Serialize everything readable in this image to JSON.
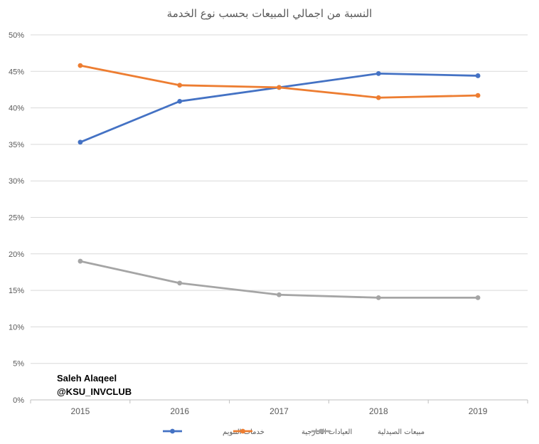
{
  "chart_data": {
    "type": "line",
    "title": "النسبة من اجمالي المبيعات بحسب نوع الخدمة",
    "categories": [
      "2015",
      "2016",
      "2017",
      "2018",
      "2019"
    ],
    "ylim": [
      0,
      0.5
    ],
    "y_ticks": [
      "0%",
      "5%",
      "10%",
      "15%",
      "20%",
      "25%",
      "30%",
      "35%",
      "40%",
      "45%",
      "50%"
    ],
    "grid": true,
    "legend_position": "bottom",
    "series": [
      {
        "name": "خدمات التنويم",
        "color": "#4472C4",
        "values": [
          0.353,
          0.409,
          0.428,
          0.447,
          0.444
        ]
      },
      {
        "name": "العيادات الخارجية",
        "color": "#ED7D31",
        "values": [
          0.458,
          0.431,
          0.428,
          0.414,
          0.417
        ]
      },
      {
        "name": "مبيعات الصيدلية",
        "color": "#A5A5A5",
        "values": [
          0.19,
          0.16,
          0.144,
          0.14,
          0.14
        ]
      }
    ]
  },
  "watermark": {
    "line1": "Saleh Alaqeel",
    "line2": "@KSU_INVCLUB"
  }
}
